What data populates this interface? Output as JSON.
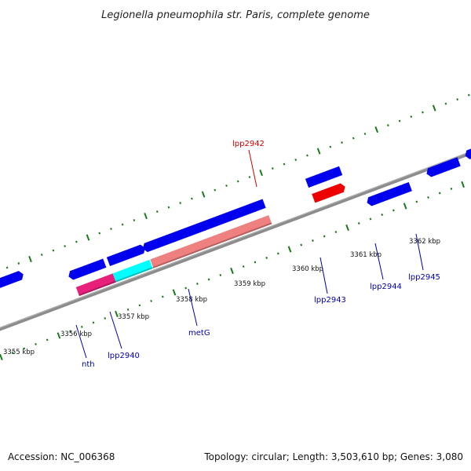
{
  "title": "Legionella pneumophila str. Paris, complete genome",
  "footer": {
    "accession": "Accession: NC_006368",
    "summary": "Topology: circular; Length: 3,503,610 bp; Genes: 3,080"
  },
  "ticks": [
    "3355 kbp",
    "3356 kbp",
    "3357 kbp",
    "3358 kbp",
    "3359 kbp",
    "3360 kbp",
    "3361 kbp",
    "3362 kbp"
  ],
  "genes": [
    {
      "name": "nth",
      "color": "#0000aa"
    },
    {
      "name": "lpp2940",
      "color": "#0000aa"
    },
    {
      "name": "metG",
      "color": "#0000aa"
    },
    {
      "name": "lpp2942",
      "color": "#cc0000"
    },
    {
      "name": "lpp2943",
      "color": "#0000aa"
    },
    {
      "name": "lpp2944",
      "color": "#0000aa"
    },
    {
      "name": "lpp2945",
      "color": "#0000aa"
    }
  ],
  "colors": {
    "backbone": "#8c8c8c",
    "tick": "#1a7a1a",
    "gene_blue": "#0000ee",
    "gene_red": "#ee0000",
    "gene_pink": "#e8207c",
    "gene_cyan": "#00ffff",
    "gene_salmon": "#ef8080",
    "gene_gray": "#c0c0c0",
    "gene_olive": "#6b8e23"
  }
}
